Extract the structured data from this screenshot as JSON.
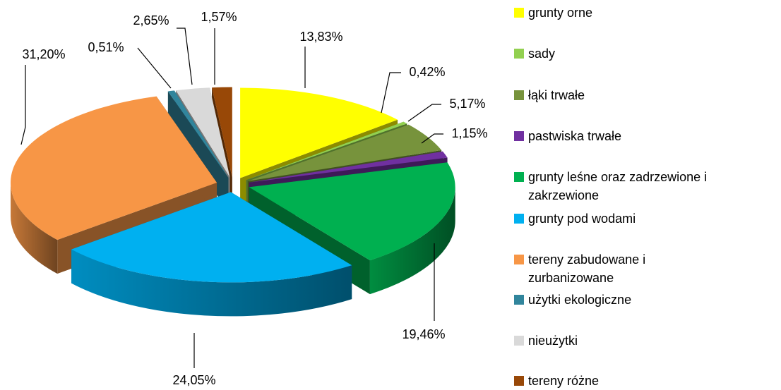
{
  "chart_data": {
    "type": "pie",
    "categories": [
      "grunty orne",
      "sady",
      "łąki trwałe",
      "pastwiska trwałe",
      "grunty leśne oraz zadrzewione i zakrzewione",
      "grunty pod wodami",
      "tereny zabudowane i zurbanizowane",
      "użytki ekologiczne",
      "nieużytki",
      "tereny różne"
    ],
    "values": [
      13.83,
      0.42,
      5.17,
      1.15,
      19.46,
      24.05,
      31.2,
      0.51,
      2.65,
      1.57
    ],
    "value_labels": [
      "13,83%",
      "0,42%",
      "5,17%",
      "1,15%",
      "19,46%",
      "24,05%",
      "31,20%",
      "0,51%",
      "2,65%",
      "1,57%"
    ],
    "colors": [
      "#ffff00",
      "#92d050",
      "#77933c",
      "#7030a0",
      "#00b050",
      "#00b0f0",
      "#f79646",
      "#31859c",
      "#d9d9d9",
      "#984807"
    ],
    "legend": "right"
  }
}
